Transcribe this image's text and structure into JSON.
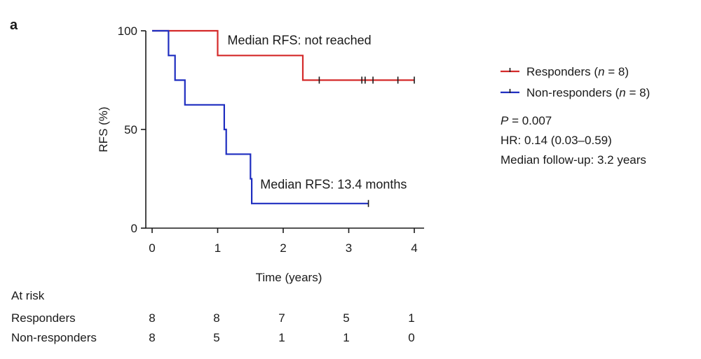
{
  "panel_label": "a",
  "chart_data": {
    "type": "line",
    "subtype": "kaplan-meier",
    "xlabel": "Time (years)",
    "ylabel": "RFS (%)",
    "xlim": [
      0,
      4
    ],
    "ylim": [
      0,
      100
    ],
    "xticks": [
      0,
      1,
      2,
      3,
      4
    ],
    "yticks": [
      0,
      50,
      100
    ],
    "series": [
      {
        "name": "Responders",
        "n_label": "(n = 8)",
        "color": "#d42a2a",
        "steps": [
          [
            0,
            100
          ],
          [
            1.0,
            100
          ],
          [
            1.0,
            87.5
          ],
          [
            2.3,
            87.5
          ],
          [
            2.3,
            75
          ],
          [
            4.0,
            75
          ]
        ],
        "censor_x": [
          2.55,
          3.2,
          3.25,
          3.37,
          3.75,
          4.0
        ]
      },
      {
        "name": "Non-responders",
        "n_label": "(n = 8)",
        "color": "#1f2ec0",
        "steps": [
          [
            0,
            100
          ],
          [
            0.25,
            100
          ],
          [
            0.25,
            87.5
          ],
          [
            0.35,
            87.5
          ],
          [
            0.35,
            75
          ],
          [
            0.5,
            75
          ],
          [
            0.5,
            62.5
          ],
          [
            1.1,
            62.5
          ],
          [
            1.1,
            50
          ],
          [
            1.13,
            50
          ],
          [
            1.13,
            37.5
          ],
          [
            1.5,
            37.5
          ],
          [
            1.5,
            25
          ],
          [
            1.52,
            25
          ],
          [
            1.52,
            12.5
          ],
          [
            3.3,
            12.5
          ]
        ],
        "censor_x": [
          3.3
        ]
      }
    ],
    "annotations": [
      {
        "text": "Median RFS: not reached",
        "x": 1.15,
        "y": 93
      },
      {
        "text": "Median RFS: 13.4 months",
        "x": 1.65,
        "y": 20
      }
    ],
    "legend_position": "right",
    "grid": false
  },
  "stats": {
    "p_label": "P",
    "p_value": " = 0.007",
    "hr": "HR: 0.14 (0.03–0.59)",
    "follow_up": "Median follow-up: 3.2 years"
  },
  "at_risk": {
    "title": "At risk",
    "rows": [
      {
        "label": "Responders",
        "values": [
          "8",
          "8",
          "7",
          "5",
          "1"
        ]
      },
      {
        "label": "Non-responders",
        "values": [
          "8",
          "5",
          "1",
          "1",
          "0"
        ]
      }
    ]
  }
}
